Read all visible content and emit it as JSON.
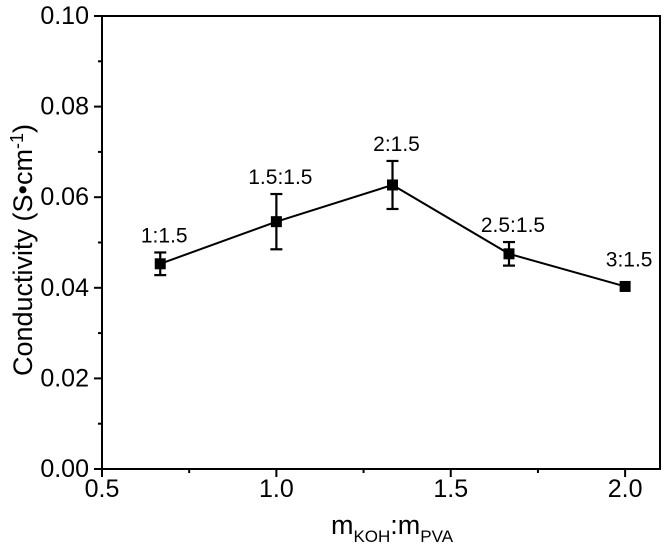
{
  "figure": {
    "background": "#ffffff",
    "axis_color": "#000000",
    "series_color": "#000000",
    "text_color": "#000000"
  },
  "chart_data": {
    "type": "line",
    "title": "",
    "xlabel": "mKOH:mPVA",
    "ylabel": "Conductivity (S•cm⁻¹)",
    "xlabel_segments": [
      {
        "text": "m",
        "style": "base"
      },
      {
        "text": "KOH",
        "style": "sub"
      },
      {
        "text": ":m",
        "style": "base"
      },
      {
        "text": "PVA",
        "style": "sub"
      }
    ],
    "ylabel_segments": [
      {
        "text": "Conductivity (S•cm",
        "style": "base"
      },
      {
        "text": "-1",
        "style": "sup"
      },
      {
        "text": ")",
        "style": "base"
      }
    ],
    "x": [
      0.667,
      1.0,
      1.333,
      1.667,
      2.0
    ],
    "y": [
      0.0453,
      0.0546,
      0.0627,
      0.0475,
      0.0403
    ],
    "yerr": [
      0.0025,
      0.0061,
      0.0053,
      0.0026,
      0
    ],
    "point_labels": [
      "1:1.5",
      "1.5:1.5",
      "2:1.5",
      "2.5:1.5",
      "3:1.5"
    ],
    "xlim": [
      0.5,
      2.1
    ],
    "ylim": [
      0.0,
      0.1
    ],
    "x_ticks": [
      {
        "v": 0.5,
        "label": "0.5"
      },
      {
        "v": 1.0,
        "label": "1.0"
      },
      {
        "v": 1.5,
        "label": "1.5"
      },
      {
        "v": 2.0,
        "label": "2.0"
      }
    ],
    "x_minor_ticks": [
      0.75,
      1.25,
      1.75
    ],
    "y_ticks": [
      {
        "v": 0.0,
        "label": "0.00"
      },
      {
        "v": 0.02,
        "label": "0.02"
      },
      {
        "v": 0.04,
        "label": "0.04"
      },
      {
        "v": 0.06,
        "label": "0.06"
      },
      {
        "v": 0.08,
        "label": "0.08"
      },
      {
        "v": 0.1,
        "label": "0.10"
      }
    ],
    "y_minor_ticks": [
      0.01,
      0.03,
      0.05,
      0.07,
      0.09
    ],
    "grid": false,
    "legend": null,
    "marker": "square",
    "error_caps": true
  }
}
